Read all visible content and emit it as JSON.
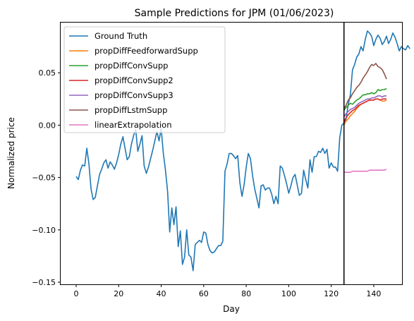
{
  "chart_data": {
    "type": "line",
    "title": "Sample Predictions for JPM (01/06/2023)",
    "xlabel": "Day",
    "ylabel": "Normalized price",
    "xlim": [
      -7.3,
      153.3
    ],
    "ylim": [
      -0.152,
      0.098
    ],
    "xticks": [
      0,
      20,
      40,
      60,
      80,
      100,
      120,
      140
    ],
    "yticks": [
      -0.15,
      -0.1,
      -0.05,
      0.0,
      0.05
    ],
    "ytick_labels": [
      "−0.15",
      "−0.10",
      "−0.05",
      "0.00",
      "0.05"
    ],
    "grid": false,
    "legend": "top-left",
    "vline": {
      "x": 126,
      "color": "#000000"
    },
    "series": [
      {
        "name": "Ground Truth",
        "color": "#1f77b4",
        "x0": 0,
        "values": [
          -0.049,
          -0.052,
          -0.043,
          -0.038,
          -0.039,
          -0.022,
          -0.037,
          -0.061,
          -0.071,
          -0.069,
          -0.058,
          -0.047,
          -0.042,
          -0.036,
          -0.033,
          -0.041,
          -0.035,
          -0.038,
          -0.042,
          -0.036,
          -0.028,
          -0.018,
          -0.011,
          -0.022,
          -0.033,
          -0.03,
          -0.018,
          -0.01,
          -0.004,
          -0.025,
          -0.018,
          -0.01,
          -0.039,
          -0.046,
          -0.04,
          -0.032,
          -0.024,
          -0.015,
          -0.006,
          -0.015,
          -0.003,
          -0.027,
          -0.043,
          -0.063,
          -0.102,
          -0.079,
          -0.095,
          -0.078,
          -0.116,
          -0.101,
          -0.133,
          -0.126,
          -0.1,
          -0.124,
          -0.126,
          -0.139,
          -0.114,
          -0.112,
          -0.11,
          -0.112,
          -0.102,
          -0.103,
          -0.114,
          -0.12,
          -0.122,
          -0.121,
          -0.118,
          -0.115,
          -0.115,
          -0.111,
          -0.044,
          -0.037,
          -0.027,
          -0.027,
          -0.029,
          -0.032,
          -0.029,
          -0.055,
          -0.068,
          -0.057,
          -0.04,
          -0.027,
          -0.032,
          -0.048,
          -0.061,
          -0.07,
          -0.079,
          -0.058,
          -0.057,
          -0.062,
          -0.06,
          -0.06,
          -0.066,
          -0.075,
          -0.068,
          -0.075,
          -0.039,
          -0.041,
          -0.048,
          -0.056,
          -0.065,
          -0.058,
          -0.05,
          -0.047,
          -0.057,
          -0.067,
          -0.065,
          -0.043,
          -0.052,
          -0.06,
          -0.033,
          -0.045,
          -0.03,
          -0.03,
          -0.025,
          -0.026,
          -0.022,
          -0.027,
          -0.023,
          -0.041,
          -0.036,
          -0.04,
          -0.04,
          -0.044,
          -0.012,
          0.0,
          0.002,
          0.006,
          0.02,
          0.029,
          0.053,
          0.058,
          0.065,
          0.068,
          0.075,
          0.071,
          0.082,
          0.09,
          0.088,
          0.085,
          0.076,
          0.082,
          0.086,
          0.083,
          0.077,
          0.08,
          0.085,
          0.078,
          0.082,
          0.088,
          0.084,
          0.078,
          0.071,
          0.075,
          0.073,
          0.072,
          0.076,
          0.073
        ]
      },
      {
        "name": "propDiffFeedforwardSupp",
        "color": "#ff7f0e",
        "x0": 126,
        "values": [
          0.0,
          0.004,
          0.006,
          0.009,
          0.011,
          0.013,
          0.016,
          0.018,
          0.02,
          0.021,
          0.022,
          0.023,
          0.024,
          0.024,
          0.024,
          0.025,
          0.025,
          0.024,
          0.023,
          0.023,
          0.024
        ]
      },
      {
        "name": "propDiffConvSupp",
        "color": "#2ca02c",
        "x0": 126,
        "values": [
          0.014,
          0.017,
          0.019,
          0.021,
          0.02,
          0.022,
          0.024,
          0.025,
          0.027,
          0.029,
          0.029,
          0.03,
          0.03,
          0.031,
          0.03,
          0.031,
          0.034,
          0.033,
          0.034,
          0.034,
          0.035
        ]
      },
      {
        "name": "propDiffConvSupp2",
        "color": "#d62728",
        "x0": 126,
        "values": [
          0.003,
          0.007,
          0.01,
          0.012,
          0.014,
          0.015,
          0.017,
          0.019,
          0.02,
          0.021,
          0.022,
          0.023,
          0.024,
          0.024,
          0.024,
          0.025,
          0.025,
          0.024,
          0.025,
          0.025,
          0.025
        ]
      },
      {
        "name": "propDiffConvSupp3",
        "color": "#9467bd",
        "x0": 126,
        "values": [
          0.008,
          0.011,
          0.013,
          0.015,
          0.016,
          0.017,
          0.019,
          0.021,
          0.022,
          0.023,
          0.024,
          0.025,
          0.025,
          0.026,
          0.026,
          0.027,
          0.028,
          0.028,
          0.027,
          0.028,
          0.028
        ]
      },
      {
        "name": "propDiffLstmSupp",
        "color": "#8c564b",
        "x0": 126,
        "values": [
          0.016,
          0.019,
          0.024,
          0.026,
          0.03,
          0.033,
          0.036,
          0.038,
          0.041,
          0.045,
          0.048,
          0.051,
          0.055,
          0.058,
          0.057,
          0.059,
          0.056,
          0.055,
          0.053,
          0.049,
          0.044
        ]
      },
      {
        "name": "linearExtrapolation",
        "color": "#e377c2",
        "x0": 126,
        "values": [
          -0.045,
          -0.045,
          -0.045,
          -0.045,
          -0.044,
          -0.044,
          -0.044,
          -0.044,
          -0.044,
          -0.044,
          -0.044,
          -0.044,
          -0.043,
          -0.043,
          -0.043,
          -0.043,
          -0.043,
          -0.043,
          -0.043,
          -0.043,
          -0.042
        ]
      }
    ]
  }
}
